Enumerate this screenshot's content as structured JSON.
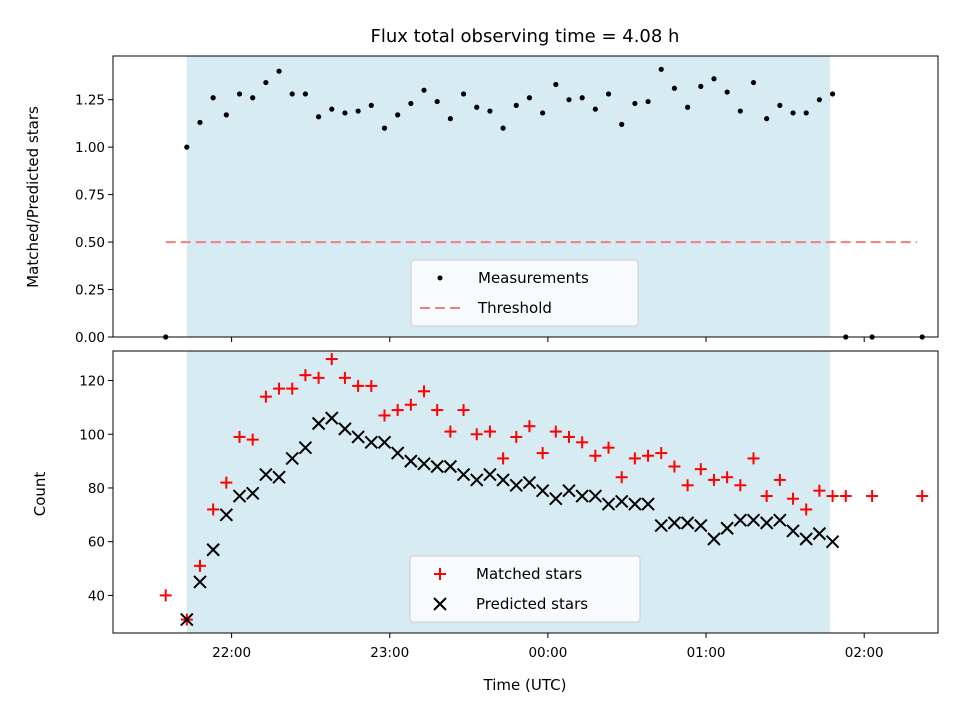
{
  "chart_data": [
    {
      "type": "scatter",
      "title": "Flux total observing time = 4.08 h",
      "ylabel": "Matched/Predicted stars",
      "xlabel": "",
      "ylim": [
        0.0,
        1.48
      ],
      "yticks": [
        "0.00",
        "0.25",
        "0.50",
        "0.75",
        "1.00",
        "1.25"
      ],
      "ytick_values": [
        0.0,
        0.25,
        0.5,
        0.75,
        1.0,
        1.25
      ],
      "shaded_region": {
        "from": "21:43",
        "to": "01:47",
        "color": "#add8e6"
      },
      "threshold": {
        "name": "Threshold",
        "y": 0.5,
        "from": "21:35",
        "to": "02:20",
        "color": "#f08080"
      },
      "legend": {
        "placement": "lower center",
        "entries": [
          "Measurements",
          "Threshold"
        ]
      },
      "series": [
        {
          "name": "Measurements",
          "marker": "dot",
          "color": "#000000",
          "x": [
            "21:35",
            "21:43",
            "21:48",
            "21:53",
            "21:58",
            "22:03",
            "22:08",
            "22:13",
            "22:18",
            "22:23",
            "22:28",
            "22:33",
            "22:38",
            "22:43",
            "22:48",
            "22:53",
            "22:58",
            "23:03",
            "23:08",
            "23:13",
            "23:18",
            "23:23",
            "23:28",
            "23:33",
            "23:38",
            "23:43",
            "23:48",
            "23:53",
            "23:58",
            "00:03",
            "00:08",
            "00:13",
            "00:18",
            "00:23",
            "00:28",
            "00:33",
            "00:38",
            "00:43",
            "00:48",
            "00:53",
            "00:58",
            "01:03",
            "01:08",
            "01:13",
            "01:18",
            "01:23",
            "01:28",
            "01:33",
            "01:38",
            "01:43",
            "01:48",
            "01:53",
            "02:03",
            "02:22"
          ],
          "y": [
            0.0,
            1.0,
            1.13,
            1.26,
            1.17,
            1.28,
            1.26,
            1.34,
            1.4,
            1.28,
            1.28,
            1.16,
            1.2,
            1.18,
            1.19,
            1.22,
            1.1,
            1.17,
            1.23,
            1.3,
            1.24,
            1.15,
            1.28,
            1.21,
            1.19,
            1.1,
            1.22,
            1.26,
            1.18,
            1.33,
            1.25,
            1.26,
            1.2,
            1.28,
            1.12,
            1.23,
            1.24,
            1.41,
            1.31,
            1.21,
            1.32,
            1.36,
            1.29,
            1.19,
            1.34,
            1.15,
            1.22,
            1.18,
            1.18,
            1.25,
            1.28,
            0.0,
            0.0,
            0.0
          ]
        }
      ]
    },
    {
      "type": "scatter",
      "title": "",
      "xlabel": "Time (UTC)",
      "ylabel": "Count",
      "ylim": [
        26,
        131
      ],
      "yticks": [
        "40",
        "60",
        "80",
        "100",
        "120"
      ],
      "ytick_values": [
        40,
        60,
        80,
        100,
        120
      ],
      "xticks": [
        "22:00",
        "23:00",
        "00:00",
        "01:00",
        "02:00"
      ],
      "shaded_region": {
        "from": "21:43",
        "to": "01:47",
        "color": "#add8e6"
      },
      "legend": {
        "placement": "lower center",
        "entries": [
          "Matched stars",
          "Predicted stars"
        ]
      },
      "series": [
        {
          "name": "Matched stars",
          "marker": "plus",
          "color": "#ff0000",
          "x": [
            "21:35",
            "21:43",
            "21:48",
            "21:53",
            "21:58",
            "22:03",
            "22:08",
            "22:13",
            "22:18",
            "22:23",
            "22:28",
            "22:33",
            "22:38",
            "22:43",
            "22:48",
            "22:53",
            "22:58",
            "23:03",
            "23:08",
            "23:13",
            "23:18",
            "23:23",
            "23:28",
            "23:33",
            "23:38",
            "23:43",
            "23:48",
            "23:53",
            "23:58",
            "00:03",
            "00:08",
            "00:13",
            "00:18",
            "00:23",
            "00:28",
            "00:33",
            "00:38",
            "00:43",
            "00:48",
            "00:53",
            "00:58",
            "01:03",
            "01:08",
            "01:13",
            "01:18",
            "01:23",
            "01:28",
            "01:33",
            "01:38",
            "01:43",
            "01:48",
            "01:53",
            "02:03",
            "02:22"
          ],
          "y": [
            40,
            31,
            51,
            72,
            82,
            99,
            98,
            114,
            117,
            117,
            122,
            121,
            128,
            121,
            118,
            118,
            107,
            109,
            111,
            116,
            109,
            101,
            109,
            100,
            101,
            91,
            99,
            103,
            93,
            101,
            99,
            97,
            92,
            95,
            84,
            91,
            92,
            93,
            88,
            81,
            87,
            83,
            84,
            81,
            91,
            77,
            83,
            76,
            72,
            79,
            77,
            77,
            77,
            77
          ]
        },
        {
          "name": "Predicted stars",
          "marker": "x",
          "color": "#000000",
          "x": [
            "21:43",
            "21:48",
            "21:53",
            "21:58",
            "22:03",
            "22:08",
            "22:13",
            "22:18",
            "22:23",
            "22:28",
            "22:33",
            "22:38",
            "22:43",
            "22:48",
            "22:53",
            "22:58",
            "23:03",
            "23:08",
            "23:13",
            "23:18",
            "23:23",
            "23:28",
            "23:33",
            "23:38",
            "23:43",
            "23:48",
            "23:53",
            "23:58",
            "00:03",
            "00:08",
            "00:13",
            "00:18",
            "00:23",
            "00:28",
            "00:33",
            "00:38",
            "00:43",
            "00:48",
            "00:53",
            "00:58",
            "01:03",
            "01:08",
            "01:13",
            "01:18",
            "01:23",
            "01:28",
            "01:33",
            "01:38",
            "01:43",
            "01:48"
          ],
          "y": [
            31,
            45,
            57,
            70,
            77,
            78,
            85,
            84,
            91,
            95,
            104,
            106,
            102,
            99,
            97,
            97,
            93,
            90,
            89,
            88,
            88,
            85,
            83,
            85,
            83,
            81,
            82,
            79,
            76,
            79,
            77,
            77,
            74,
            75,
            74,
            74,
            66,
            67,
            67,
            66,
            61,
            65,
            68,
            68,
            67,
            68,
            64,
            61,
            63,
            60
          ]
        }
      ]
    }
  ]
}
